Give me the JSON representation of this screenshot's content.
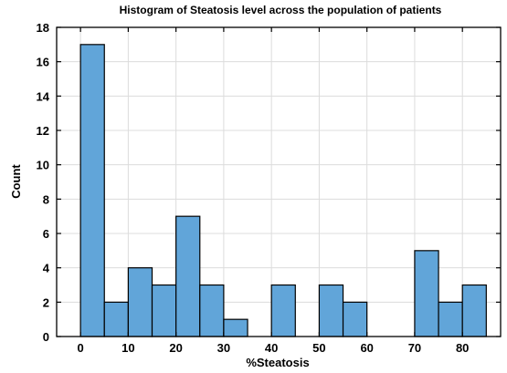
{
  "chart_data": {
    "type": "bar",
    "title": "Histogram of Steatosis level across the population of patients",
    "xlabel": "%Steatosis",
    "ylabel": "Count",
    "bin_width": 5,
    "bins": [
      {
        "start": 0,
        "end": 5,
        "count": 17
      },
      {
        "start": 5,
        "end": 10,
        "count": 2
      },
      {
        "start": 10,
        "end": 15,
        "count": 4
      },
      {
        "start": 15,
        "end": 20,
        "count": 3
      },
      {
        "start": 20,
        "end": 25,
        "count": 7
      },
      {
        "start": 25,
        "end": 30,
        "count": 3
      },
      {
        "start": 30,
        "end": 35,
        "count": 1
      },
      {
        "start": 35,
        "end": 40,
        "count": 0
      },
      {
        "start": 40,
        "end": 45,
        "count": 3
      },
      {
        "start": 45,
        "end": 50,
        "count": 0
      },
      {
        "start": 50,
        "end": 55,
        "count": 3
      },
      {
        "start": 55,
        "end": 60,
        "count": 2
      },
      {
        "start": 60,
        "end": 65,
        "count": 0
      },
      {
        "start": 65,
        "end": 70,
        "count": 0
      },
      {
        "start": 70,
        "end": 75,
        "count": 5
      },
      {
        "start": 75,
        "end": 80,
        "count": 2
      },
      {
        "start": 80,
        "end": 85,
        "count": 3
      }
    ],
    "xlim": [
      -5,
      88
    ],
    "ylim": [
      0,
      18
    ],
    "xticks": [
      0,
      10,
      20,
      30,
      40,
      50,
      60,
      70,
      80
    ],
    "yticks": [
      0,
      2,
      4,
      6,
      8,
      10,
      12,
      14,
      16,
      18
    ],
    "grid": true,
    "bar_color": "#61a5d9",
    "edge_color": "#000000"
  }
}
